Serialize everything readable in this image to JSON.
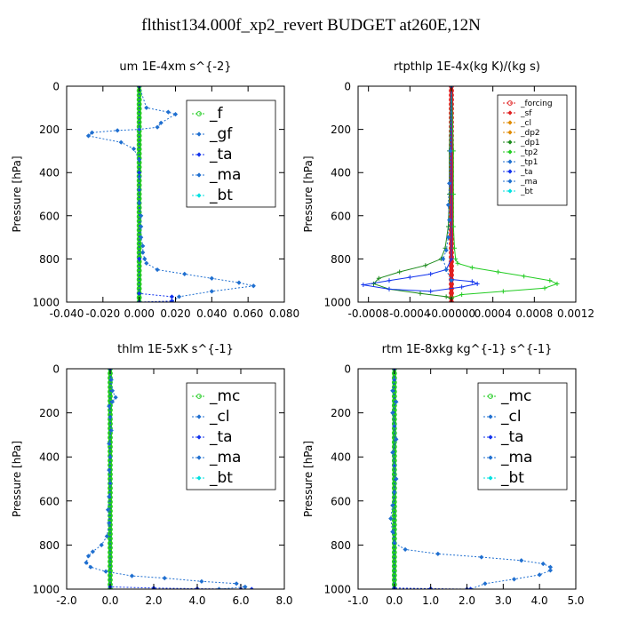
{
  "page": {
    "title": "flthist134.000f_xp2_revert  BUDGET at260E,12N"
  },
  "colors": {
    "green": "#22cc22",
    "cyan": "#00e0e0",
    "blue": "#1133ee",
    "medblue": "#1f6fd0",
    "navy": "#000088",
    "red": "#e02020",
    "orange": "#e08a00",
    "forest": "#1a8a1a"
  },
  "chart_data": [
    {
      "type": "line",
      "title": "um  1E-4xm s^{-2}",
      "xlabel": "",
      "ylabel": "Pressure [hPa]",
      "xlim": [
        -0.04,
        0.08
      ],
      "ylim": [
        1000,
        0
      ],
      "xticks": [
        "-0.040",
        "-0.020",
        "0.000",
        "0.020",
        "0.040",
        "0.060",
        "0.080"
      ],
      "xtick_values": [
        -0.04,
        -0.02,
        0.0,
        0.02,
        0.04,
        0.06,
        0.08
      ],
      "yticks": [
        "0",
        "200",
        "400",
        "600",
        "800",
        "1000"
      ],
      "ytick_values": [
        0,
        200,
        400,
        600,
        800,
        1000
      ],
      "legend": {
        "position": "top-right",
        "entries": [
          "_f",
          "_gf",
          "_ta",
          "_ma",
          "_bt"
        ]
      },
      "series": [
        {
          "name": "_f",
          "color": "green",
          "style": "thick",
          "x": [
            0,
            0
          ],
          "y": [
            0,
            1000
          ]
        },
        {
          "name": "_gf",
          "color": "medblue",
          "style": "dotted",
          "x": [
            0.0,
            0.004,
            0.016,
            0.02,
            0.012,
            0.01,
            0.0,
            -0.012,
            -0.026,
            -0.028,
            -0.01,
            -0.003,
            0.0,
            0.0,
            0.0,
            0.0,
            0.001,
            0.001,
            0.001,
            0.002,
            0.002,
            0.003,
            0.004,
            0.01,
            0.025,
            0.04,
            0.055,
            0.063,
            0.04,
            0.022,
            0.018
          ],
          "y": [
            0,
            100,
            120,
            130,
            170,
            190,
            200,
            205,
            215,
            230,
            260,
            290,
            340,
            420,
            480,
            540,
            600,
            650,
            700,
            740,
            770,
            800,
            820,
            850,
            870,
            890,
            910,
            925,
            950,
            975,
            1000
          ]
        },
        {
          "name": "_ta",
          "color": "blue",
          "style": "dotted",
          "x": [
            0,
            0,
            0,
            0,
            0.018,
            0.018,
            0.0
          ],
          "y": [
            0,
            400,
            800,
            960,
            975,
            995,
            1000
          ]
        }
      ]
    },
    {
      "type": "line",
      "title": "rtpthlp  1E-4x(kg K)/(kg s)",
      "xlabel": "",
      "ylabel": "Pressure [hPa]",
      "xlim": [
        -0.0009,
        0.0012
      ],
      "ylim": [
        1000,
        0
      ],
      "xticks": [
        "-0.0008",
        "-0.0004",
        "-0.00000",
        "0.0004",
        "0.0008",
        "0.0012"
      ],
      "xtick_values": [
        -0.0008,
        -0.0004,
        0.0,
        0.0004,
        0.0008,
        0.0012
      ],
      "yticks": [
        "0",
        "200",
        "400",
        "600",
        "800",
        "1000"
      ],
      "ytick_values": [
        0,
        200,
        400,
        600,
        800,
        1000
      ],
      "legend": {
        "position": "top-right",
        "entries": [
          "_forcing",
          "_sf",
          "_cl",
          "_dp2",
          "_dp1",
          "_tp2",
          "_tp1",
          "_ta",
          "_ma",
          "_bt"
        ]
      },
      "series": [
        {
          "name": "_forcing",
          "color": "red",
          "style": "thick",
          "x": [
            0,
            0
          ],
          "y": [
            0,
            1000
          ]
        },
        {
          "name": "_tp2",
          "color": "green",
          "style": "solid",
          "x": [
            0,
            2e-05,
            2e-05,
            2e-05,
            3e-05,
            4e-05,
            6e-05,
            0.0002,
            0.00045,
            0.0007,
            0.00095,
            0.00102,
            0.0009,
            0.0005,
            0.0001,
            0.0
          ],
          "y": [
            0,
            300,
            500,
            650,
            750,
            800,
            820,
            840,
            860,
            880,
            900,
            915,
            935,
            950,
            965,
            980
          ]
        },
        {
          "name": "_dp1",
          "color": "forest",
          "style": "solid",
          "x": [
            0,
            -2e-05,
            -2e-05,
            -3e-05,
            -6e-05,
            -0.0001,
            -0.00025,
            -0.0005,
            -0.0007,
            -0.00075,
            -0.0006,
            -0.0003,
            -5e-05,
            0.0
          ],
          "y": [
            0,
            300,
            500,
            650,
            750,
            800,
            830,
            860,
            890,
            915,
            940,
            960,
            975,
            985
          ]
        },
        {
          "name": "_ta",
          "color": "blue",
          "style": "solid",
          "x": [
            0,
            0,
            -5e-05,
            -0.0002,
            -0.0004,
            -0.0006,
            -0.00085,
            -0.0006,
            -0.0002,
            0.0001,
            0.00025,
            0.0002,
            0.0
          ],
          "y": [
            0,
            800,
            850,
            870,
            885,
            900,
            920,
            940,
            950,
            930,
            915,
            905,
            895
          ]
        },
        {
          "name": "_cl",
          "color": "medblue",
          "style": "dotted",
          "x": [
            0,
            -1e-05,
            -2e-05,
            -3e-05,
            -2e-05,
            -3e-05,
            -5e-05,
            -8e-05,
            -5e-05,
            0
          ],
          "y": [
            0,
            300,
            450,
            550,
            620,
            700,
            760,
            800,
            850,
            900
          ]
        }
      ]
    },
    {
      "type": "line",
      "title": "thlm  1E-5xK s^{-1}",
      "xlabel": "",
      "ylabel": "Pressure [hPa]",
      "xlim": [
        -2.0,
        8.0
      ],
      "ylim": [
        1000,
        0
      ],
      "xticks": [
        "-2.0",
        "0.0",
        "2.0",
        "4.0",
        "6.0",
        "8.0"
      ],
      "xtick_values": [
        -2.0,
        0.0,
        2.0,
        4.0,
        6.0,
        8.0
      ],
      "yticks": [
        "0",
        "200",
        "400",
        "600",
        "800",
        "1000"
      ],
      "ytick_values": [
        0,
        200,
        400,
        600,
        800,
        1000
      ],
      "legend": {
        "position": "top-right",
        "entries": [
          "_mc",
          "_cl",
          "_ta",
          "_ma",
          "_bt"
        ]
      },
      "series": [
        {
          "name": "_mc",
          "color": "green",
          "style": "thick",
          "x": [
            0,
            0
          ],
          "y": [
            0,
            1000
          ]
        },
        {
          "name": "_cl",
          "color": "medblue",
          "style": "dotted",
          "x": [
            0.0,
            0.05,
            0.1,
            0.25,
            0.1,
            -0.05,
            0.0,
            0.05,
            -0.05,
            0.0,
            -0.05,
            0.0,
            -0.05,
            -0.1,
            -0.05,
            -0.15,
            -0.4,
            -0.8,
            -1.0,
            -1.1,
            -0.9,
            -0.2,
            1.0,
            2.5,
            4.2,
            5.8,
            6.2,
            5.0
          ],
          "y": [
            0,
            50,
            100,
            130,
            150,
            170,
            220,
            280,
            340,
            400,
            460,
            520,
            580,
            640,
            700,
            760,
            800,
            830,
            850,
            880,
            900,
            920,
            940,
            950,
            965,
            975,
            990,
            1000
          ]
        },
        {
          "name": "_ta",
          "color": "blue",
          "style": "dotted",
          "x": [
            0,
            0,
            2.0,
            4.0,
            6.0,
            6.5
          ],
          "y": [
            0,
            990,
            995,
            998,
            1000,
            1000
          ]
        }
      ]
    },
    {
      "type": "line",
      "title": "rtm  1E-8xkg kg^{-1} s^{-1}",
      "xlabel": "",
      "ylabel": "Pressure [hPa]",
      "xlim": [
        -1.0,
        5.0
      ],
      "ylim": [
        1000,
        0
      ],
      "xticks": [
        "-1.0",
        "0.0",
        "1.0",
        "2.0",
        "3.0",
        "4.0",
        "5.0"
      ],
      "xtick_values": [
        -1.0,
        0.0,
        1.0,
        2.0,
        3.0,
        4.0,
        5.0
      ],
      "yticks": [
        "0",
        "200",
        "400",
        "600",
        "800",
        "1000"
      ],
      "ytick_values": [
        0,
        200,
        400,
        600,
        800,
        1000
      ],
      "legend": {
        "position": "top-right",
        "entries": [
          "_mc",
          "_cl",
          "_ta",
          "_ma",
          "_bt"
        ]
      },
      "series": [
        {
          "name": "_mc",
          "color": "green",
          "style": "thick",
          "x": [
            0,
            0
          ],
          "y": [
            0,
            1000
          ]
        },
        {
          "name": "_cl",
          "color": "medblue",
          "style": "dotted",
          "x": [
            0.0,
            0.0,
            -0.05,
            0.05,
            -0.05,
            0.0,
            0.05,
            -0.05,
            0.0,
            0.05,
            0.0,
            -0.05,
            -0.1,
            -0.05,
            0.0,
            0.3,
            1.2,
            2.4,
            3.5,
            4.1,
            4.3,
            4.3,
            4.0,
            3.3,
            2.5,
            2.1
          ],
          "y": [
            0,
            50,
            100,
            150,
            200,
            260,
            320,
            380,
            440,
            500,
            560,
            620,
            680,
            740,
            790,
            820,
            840,
            855,
            870,
            885,
            900,
            915,
            935,
            955,
            975,
            1000
          ]
        },
        {
          "name": "_ta",
          "color": "blue",
          "style": "dotted",
          "x": [
            0,
            0,
            1.0,
            2.0,
            2.1
          ],
          "y": [
            0,
            995,
            998,
            1000,
            1000
          ]
        }
      ]
    }
  ]
}
